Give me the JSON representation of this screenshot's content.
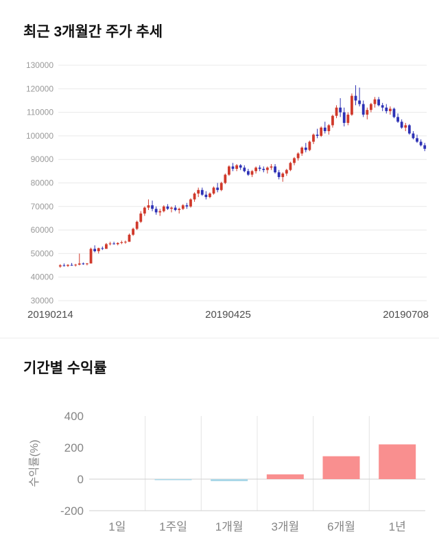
{
  "chart_data": [
    {
      "type": "candlestick",
      "title": "최근 3개월간 주가 추세",
      "x_labels": [
        "20190214",
        "20190425",
        "20190708"
      ],
      "y_ticks": [
        130000,
        120000,
        110000,
        100000,
        90000,
        80000,
        70000,
        60000,
        50000,
        40000,
        30000
      ],
      "y_min": 30000,
      "y_max": 130000,
      "up_color": "#d0392b",
      "down_color": "#2d31b5",
      "grid_color": "#e9e9e9",
      "tick_color": "#999999",
      "candles": [
        [
          44500,
          45500,
          44000,
          45000
        ],
        [
          45000,
          45800,
          44500,
          44800
        ],
        [
          44800,
          45500,
          44300,
          45200
        ],
        [
          45200,
          46000,
          44800,
          45000
        ],
        [
          45000,
          45600,
          44500,
          45300
        ],
        [
          45300,
          50000,
          45000,
          45800
        ],
        [
          45800,
          46200,
          45200,
          45500
        ],
        [
          45500,
          46000,
          45000,
          45800
        ],
        [
          45800,
          52500,
          45800,
          52000
        ],
        [
          52000,
          53500,
          50500,
          51000
        ],
        [
          51000,
          52500,
          50000,
          52300
        ],
        [
          52300,
          53000,
          51500,
          52000
        ],
        [
          52000,
          54500,
          52000,
          54000
        ],
        [
          54000,
          55000,
          53500,
          54300
        ],
        [
          54300,
          55000,
          53800,
          54000
        ],
        [
          54000,
          54800,
          53500,
          54500
        ],
        [
          54500,
          55500,
          54000,
          54800
        ],
        [
          54800,
          55500,
          54200,
          55000
        ],
        [
          55000,
          58500,
          55000,
          58000
        ],
        [
          58000,
          61000,
          57500,
          60500
        ],
        [
          60500,
          64000,
          60000,
          63500
        ],
        [
          63500,
          68000,
          63000,
          67000
        ],
        [
          67000,
          70000,
          66000,
          69500
        ],
        [
          69500,
          73000,
          68500,
          70500
        ],
        [
          70500,
          72500,
          68000,
          69000
        ],
        [
          69000,
          70000,
          66500,
          67500
        ],
        [
          67500,
          69000,
          66000,
          68000
        ],
        [
          68000,
          70500,
          67500,
          70000
        ],
        [
          70000,
          71000,
          68500,
          69000
        ],
        [
          69000,
          70000,
          67500,
          69500
        ],
        [
          69500,
          70500,
          68000,
          68500
        ],
        [
          68500,
          69500,
          67000,
          69000
        ],
        [
          69000,
          71000,
          68500,
          70500
        ],
        [
          70500,
          71500,
          69000,
          70000
        ],
        [
          70000,
          73500,
          69500,
          73000
        ],
        [
          73000,
          76000,
          72000,
          75500
        ],
        [
          75500,
          78000,
          74000,
          77000
        ],
        [
          77000,
          78000,
          74500,
          75000
        ],
        [
          75000,
          76500,
          73000,
          74000
        ],
        [
          74000,
          76000,
          73500,
          75500
        ],
        [
          75500,
          78500,
          75000,
          78000
        ],
        [
          78000,
          80000,
          76000,
          77000
        ],
        [
          77000,
          80500,
          76500,
          80000
        ],
        [
          80000,
          84000,
          79500,
          83500
        ],
        [
          83500,
          87500,
          83000,
          87000
        ],
        [
          87000,
          88500,
          85000,
          86000
        ],
        [
          86000,
          88000,
          85000,
          87500
        ],
        [
          87500,
          88000,
          85500,
          86500
        ],
        [
          86500,
          87500,
          84500,
          85000
        ],
        [
          85000,
          86000,
          83000,
          83500
        ],
        [
          83500,
          85500,
          82500,
          85000
        ],
        [
          85000,
          87000,
          84000,
          86500
        ],
        [
          86500,
          87500,
          85000,
          86000
        ],
        [
          86000,
          87000,
          84500,
          85500
        ],
        [
          85500,
          87000,
          84000,
          86500
        ],
        [
          86500,
          88000,
          85500,
          87000
        ],
        [
          87000,
          88000,
          84000,
          84500
        ],
        [
          84500,
          85500,
          81500,
          82500
        ],
        [
          82500,
          84500,
          80500,
          84000
        ],
        [
          84000,
          86000,
          83000,
          85500
        ],
        [
          85500,
          89000,
          85000,
          88500
        ],
        [
          88500,
          91000,
          87500,
          90500
        ],
        [
          90500,
          93000,
          89500,
          92500
        ],
        [
          92500,
          95500,
          91500,
          95000
        ],
        [
          95000,
          97000,
          93000,
          94000
        ],
        [
          94000,
          98000,
          93500,
          97500
        ],
        [
          97500,
          101000,
          96500,
          100500
        ],
        [
          100500,
          103000,
          99000,
          100000
        ],
        [
          100000,
          104000,
          99500,
          103500
        ],
        [
          103500,
          106000,
          101000,
          102000
        ],
        [
          102000,
          105000,
          100500,
          104500
        ],
        [
          104500,
          109000,
          103500,
          108500
        ],
        [
          108500,
          113000,
          107500,
          112000
        ],
        [
          112000,
          116000,
          108000,
          110000
        ],
        [
          110000,
          112000,
          104000,
          105500
        ],
        [
          105500,
          110000,
          104500,
          109000
        ],
        [
          109000,
          118000,
          108500,
          117000
        ],
        [
          117000,
          121500,
          113000,
          115000
        ],
        [
          115000,
          120500,
          112500,
          113500
        ],
        [
          113500,
          115000,
          108000,
          109000
        ],
        [
          109000,
          112000,
          107000,
          111000
        ],
        [
          111000,
          114000,
          110000,
          113500
        ],
        [
          113500,
          116500,
          112000,
          115500
        ],
        [
          115500,
          116500,
          112500,
          113000
        ],
        [
          113000,
          114000,
          110500,
          112000
        ],
        [
          112000,
          113500,
          109500,
          110500
        ],
        [
          110500,
          112500,
          109000,
          111500
        ],
        [
          111500,
          112000,
          107500,
          108000
        ],
        [
          108000,
          109500,
          105500,
          106000
        ],
        [
          106000,
          107000,
          103000,
          103500
        ],
        [
          103500,
          105500,
          102000,
          104500
        ],
        [
          104500,
          105000,
          100500,
          101000
        ],
        [
          101000,
          102000,
          98500,
          99000
        ],
        [
          99000,
          100500,
          97000,
          97500
        ],
        [
          97500,
          98500,
          95500,
          96000
        ],
        [
          96000,
          97000,
          93500,
          94500
        ]
      ]
    },
    {
      "type": "bar",
      "title": "기간별 수익률",
      "ylabel": "수익률(%)",
      "categories": [
        "1일",
        "1주일",
        "1개월",
        "3개월",
        "6개월",
        "1년"
      ],
      "values": [
        0,
        -3,
        -13,
        30,
        145,
        220
      ],
      "y_ticks": [
        400,
        200,
        0,
        -200
      ],
      "y_min": -200,
      "y_max": 400,
      "positive_color": "#f98f8f",
      "negative_color": "#a9d7e8",
      "grid_color": "#e4e4e4",
      "axis_color": "#cfcfcf",
      "tick_color": "#858585"
    }
  ]
}
